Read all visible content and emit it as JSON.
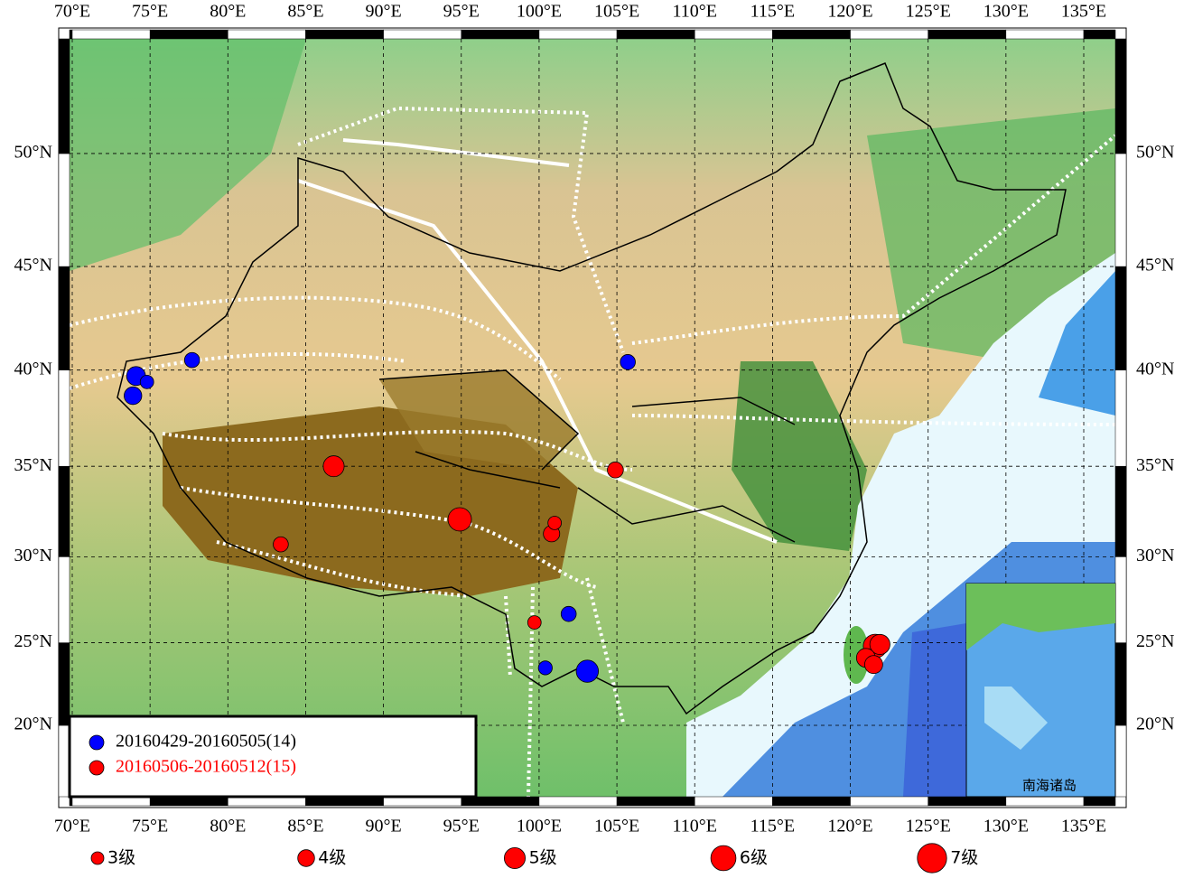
{
  "map": {
    "lon_ticks": [
      {
        "value": 70,
        "label": "70°E"
      },
      {
        "value": 75,
        "label": "75°E"
      },
      {
        "value": 80,
        "label": "80°E"
      },
      {
        "value": 85,
        "label": "85°E"
      },
      {
        "value": 90,
        "label": "90°E"
      },
      {
        "value": 95,
        "label": "95°E"
      },
      {
        "value": 100,
        "label": "100°E"
      },
      {
        "value": 105,
        "label": "105°E"
      },
      {
        "value": 110,
        "label": "110°E"
      },
      {
        "value": 115,
        "label": "115°E"
      },
      {
        "value": 120,
        "label": "120°E"
      },
      {
        "value": 125,
        "label": "125°E"
      },
      {
        "value": 130,
        "label": "130°E"
      },
      {
        "value": 135,
        "label": "135°E"
      }
    ],
    "lat_ticks": [
      {
        "value": 20,
        "label": "20°N"
      },
      {
        "value": 25,
        "label": "25°N"
      },
      {
        "value": 30,
        "label": "30°N"
      },
      {
        "value": 35,
        "label": "35°N"
      },
      {
        "value": 40,
        "label": "40°N"
      },
      {
        "value": 45,
        "label": "45°N"
      },
      {
        "value": 50,
        "label": "50°N"
      }
    ],
    "groups": [
      {
        "label": "20160429-20160505(14)",
        "color": "#0000ff",
        "text_color": "#000000",
        "events": [
          {
            "lon": 74.1,
            "lat": 39.7,
            "mag": 4.5
          },
          {
            "lon": 73.9,
            "lat": 38.7,
            "mag": 4.2
          },
          {
            "lon": 74.8,
            "lat": 39.4,
            "mag": 3.2
          },
          {
            "lon": 77.7,
            "lat": 40.5,
            "mag": 3.6
          },
          {
            "lon": 105.7,
            "lat": 40.4,
            "mag": 3.6
          },
          {
            "lon": 101.9,
            "lat": 26.7,
            "mag": 3.6
          },
          {
            "lon": 100.4,
            "lat": 23.5,
            "mag": 3.3
          },
          {
            "lon": 103.1,
            "lat": 23.3,
            "mag": 5.3
          }
        ]
      },
      {
        "label": "20160506-20160512(15)",
        "color": "#ff0000",
        "text_color": "#ff0000",
        "events": [
          {
            "lon": 86.8,
            "lat": 35.0,
            "mag": 5.0
          },
          {
            "lon": 83.4,
            "lat": 30.7,
            "mag": 3.6
          },
          {
            "lon": 94.9,
            "lat": 32.1,
            "mag": 5.6
          },
          {
            "lon": 100.8,
            "lat": 31.3,
            "mag": 3.9
          },
          {
            "lon": 101.0,
            "lat": 31.9,
            "mag": 3.2
          },
          {
            "lon": 104.9,
            "lat": 34.8,
            "mag": 3.8
          },
          {
            "lon": 99.7,
            "lat": 26.2,
            "mag": 3.2
          },
          {
            "lon": 121.6,
            "lat": 24.8,
            "mag": 5.7
          },
          {
            "lon": 121.9,
            "lat": 24.9,
            "mag": 4.8
          },
          {
            "lon": 121.0,
            "lat": 24.1,
            "mag": 4.5
          },
          {
            "lon": 121.5,
            "lat": 23.7,
            "mag": 4.3
          }
        ]
      }
    ],
    "magnitude_legend": [
      {
        "value": 3,
        "label": "3级"
      },
      {
        "value": 4,
        "label": "4级"
      },
      {
        "value": 5,
        "label": "5级"
      },
      {
        "value": 6,
        "label": "6级"
      },
      {
        "value": 7,
        "label": "7级"
      }
    ],
    "inset_label": "南海诸岛"
  }
}
